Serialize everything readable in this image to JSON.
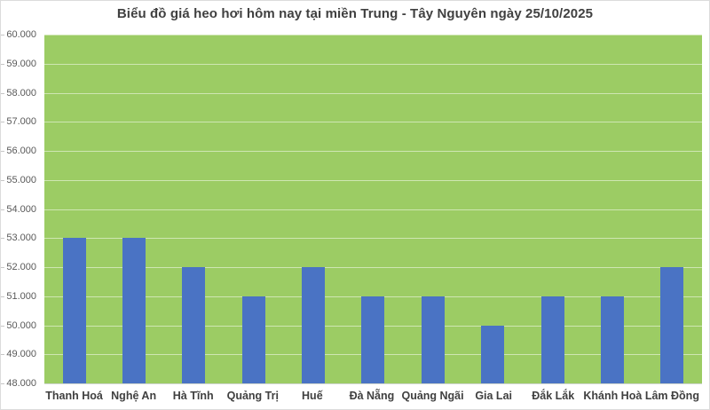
{
  "chart_data": {
    "type": "bar",
    "title": "Biểu đồ giá heo hơi hôm nay tại miền Trung - Tây Nguyên ngày 25/10/2025",
    "categories": [
      "Thanh Hoá",
      "Nghệ An",
      "Hà Tĩnh",
      "Quảng Trị",
      "Huế",
      "Đà Nẵng",
      "Quảng Ngãi",
      "Gia Lai",
      "Đắk Lắk",
      "Khánh Hoà",
      "Lâm Đồng"
    ],
    "values": [
      53000,
      53000,
      52000,
      51000,
      52000,
      51000,
      51000,
      50000,
      51000,
      51000,
      52000
    ],
    "xlabel": "",
    "ylabel": "",
    "ylim": [
      48000,
      60000
    ],
    "y_step": 1000,
    "y_tick_labels": [
      "60.000",
      "59.000",
      "58.000",
      "57.000",
      "56.000",
      "55.000",
      "54.000",
      "53.000",
      "52.000",
      "51.000",
      "50.000",
      "49.000",
      "48.000"
    ],
    "grid": true,
    "legend": false,
    "colors": {
      "bar": "#4a73c4",
      "plot_background": "#9ccc64",
      "gridline": "rgba(255,255,255,0.5)",
      "title_text": "#404040",
      "axis_text": "#595959",
      "category_text": "#404040",
      "chart_border": "#dcdcdc"
    }
  }
}
